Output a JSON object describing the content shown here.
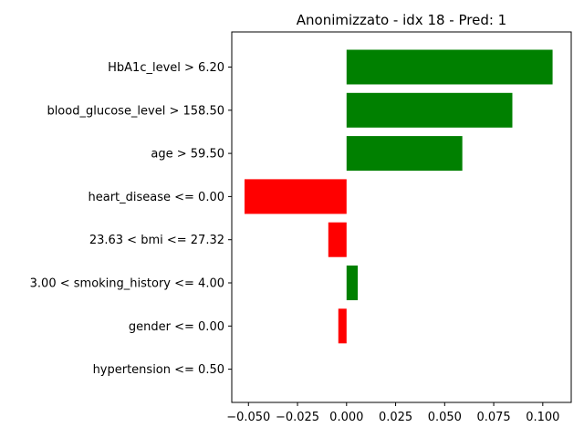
{
  "chart_data": {
    "type": "bar",
    "orientation": "horizontal",
    "title": "Anonimizzato - idx 18 - Pred: 1",
    "xlabel": "",
    "ylabel": "",
    "xlim": [
      -0.0585,
      0.1145
    ],
    "xticks": [
      -0.05,
      -0.025,
      0.0,
      0.025,
      0.05,
      0.075,
      0.1
    ],
    "xtick_labels": [
      "−0.050",
      "−0.025",
      "0.000",
      "0.025",
      "0.050",
      "0.075",
      "0.100"
    ],
    "categories": [
      "HbA1c_level > 6.20",
      "blood_glucose_level > 158.50",
      "age > 59.50",
      "heart_disease <= 0.00",
      "23.63 < bmi <= 27.32",
      "3.00 < smoking_history <= 4.00",
      "gender <= 0.00",
      "hypertension <= 0.50"
    ],
    "values": [
      0.105,
      0.0845,
      0.059,
      -0.052,
      -0.0093,
      0.0057,
      -0.0042,
      0.0
    ],
    "colors": {
      "positive": "#008000",
      "negative": "#ff0000"
    },
    "grid": false,
    "legend": "none"
  }
}
